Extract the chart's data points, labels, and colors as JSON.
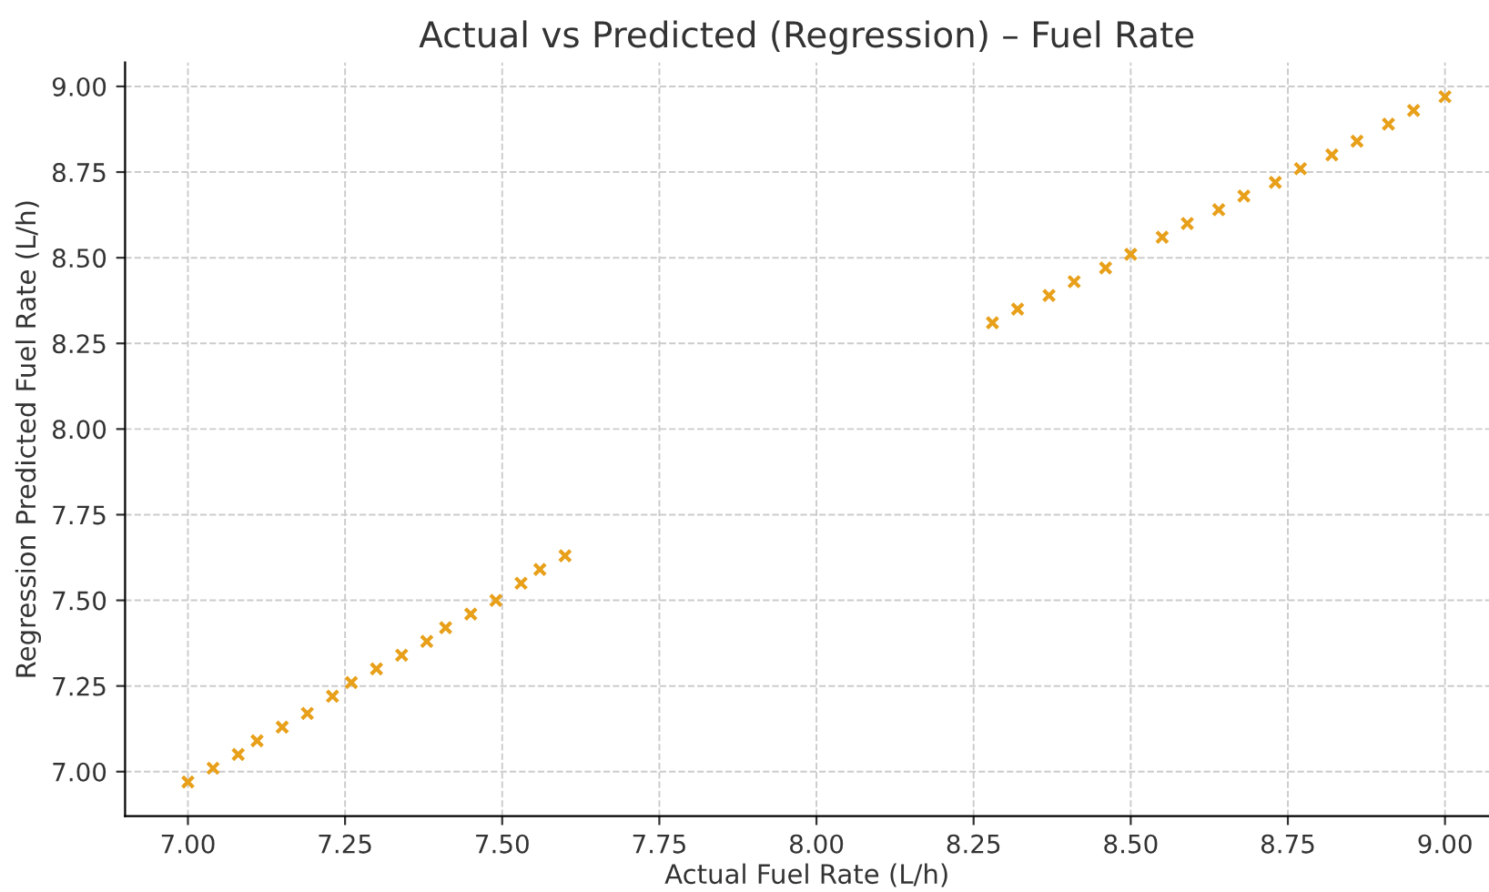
{
  "chart_data": {
    "type": "scatter",
    "title": "Actual vs Predicted (Regression) – Fuel Rate",
    "xlabel": "Actual Fuel Rate (L/h)",
    "ylabel": "Regression Predicted Fuel Rate (L/h)",
    "x": [
      7.0,
      7.04,
      7.08,
      7.11,
      7.15,
      7.19,
      7.23,
      7.26,
      7.3,
      7.34,
      7.38,
      7.41,
      7.45,
      7.49,
      7.53,
      7.56,
      7.6,
      8.28,
      8.32,
      8.37,
      8.41,
      8.46,
      8.5,
      8.55,
      8.59,
      8.64,
      8.68,
      8.73,
      8.77,
      8.82,
      8.86,
      8.91,
      8.95,
      9.0
    ],
    "series": [
      {
        "color": "#e8a01a",
        "values": [
          6.97,
          7.01,
          7.05,
          7.09,
          7.13,
          7.17,
          7.22,
          7.26,
          7.3,
          7.34,
          7.38,
          7.42,
          7.46,
          7.5,
          7.55,
          7.59,
          7.63,
          8.31,
          8.35,
          8.39,
          8.43,
          8.47,
          8.51,
          8.56,
          8.6,
          8.64,
          8.68,
          8.72,
          8.76,
          8.8,
          8.84,
          8.89,
          8.93,
          8.97
        ]
      }
    ],
    "marker": "cross",
    "grid": true,
    "xlim": [
      6.9,
      9.07
    ],
    "ylim": [
      6.87,
      9.07
    ],
    "xticks": [
      {
        "value": 7,
        "label": "7.00"
      },
      {
        "value": 7.25,
        "label": "7.25"
      },
      {
        "value": 7.5,
        "label": "7.50"
      },
      {
        "value": 7.75,
        "label": "7.75"
      },
      {
        "value": 8,
        "label": "8.00"
      },
      {
        "value": 8.25,
        "label": "8.25"
      },
      {
        "value": 8.5,
        "label": "8.50"
      },
      {
        "value": 8.75,
        "label": "8.75"
      },
      {
        "value": 9,
        "label": "9.00"
      }
    ],
    "yticks": [
      {
        "value": 7,
        "label": "7.00"
      },
      {
        "value": 7.25,
        "label": "7.25"
      },
      {
        "value": 7.5,
        "label": "7.50"
      },
      {
        "value": 7.75,
        "label": "7.75"
      },
      {
        "value": 8,
        "label": "8.00"
      },
      {
        "value": 8.25,
        "label": "8.25"
      },
      {
        "value": 8.5,
        "label": "8.50"
      },
      {
        "value": 8.75,
        "label": "8.75"
      },
      {
        "value": 9,
        "label": "9.00"
      }
    ]
  }
}
